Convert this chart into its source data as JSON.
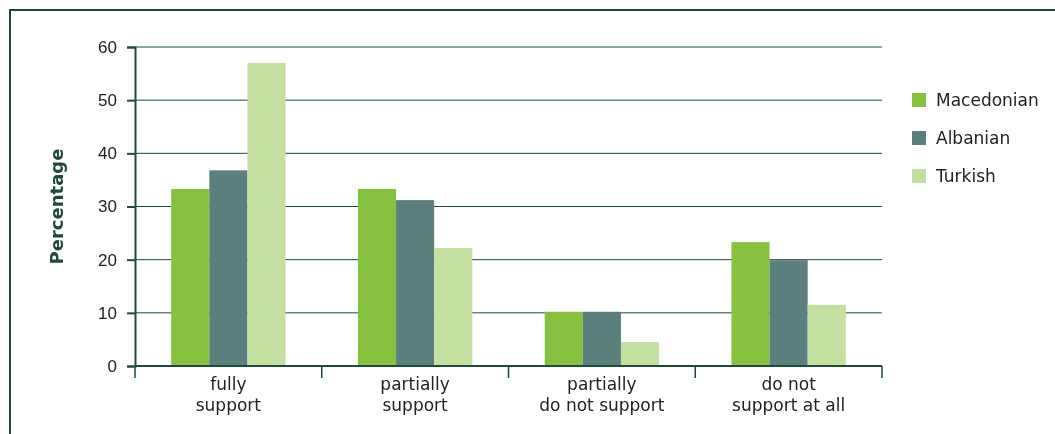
{
  "chart_data": {
    "type": "bar",
    "ylabel": "Percentage",
    "categories": [
      "fully\nsupport",
      "partially\nsupport",
      "partially\ndo not support",
      "do not\nsupport at all"
    ],
    "series": [
      {
        "name": "Macedonian",
        "color": "#86c240",
        "values": [
          33.3,
          33.3,
          10.2,
          23.3
        ]
      },
      {
        "name": "Albanian",
        "color": "#5a7f7c",
        "values": [
          36.8,
          31.2,
          10.2,
          19.9
        ]
      },
      {
        "name": "Turkish",
        "color": "#c3e0a0",
        "values": [
          57.0,
          22.2,
          4.5,
          11.5
        ]
      }
    ],
    "ylim": [
      0,
      60
    ],
    "yticks": [
      0,
      10,
      20,
      30,
      40,
      50,
      60
    ],
    "grid": "y",
    "legend": "right"
  }
}
